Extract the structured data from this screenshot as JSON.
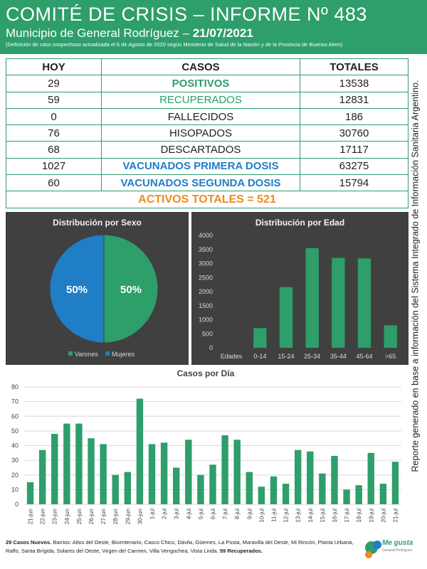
{
  "header": {
    "title": "COMITÉ DE CRISIS – INFORME Nº 483",
    "subtitle_prefix": "Municipio de General Rodríguez – ",
    "date": "21/07/2021",
    "note": "(Definición de caso sospechoso actualizada el 6 de Agosto de 2020 según Ministerio de Salud de la Nación y de la Provincia de Buenos Aires)"
  },
  "table": {
    "headers": [
      "HOY",
      "CASOS",
      "TOTALES"
    ],
    "rows": [
      {
        "hoy": "29",
        "label": "POSITIVOS",
        "total": "13538"
      },
      {
        "hoy": "59",
        "label": "RECUPERADOS",
        "total": "12831"
      },
      {
        "hoy": "0",
        "label": "FALLECIDOS",
        "total": "186"
      },
      {
        "hoy": "76",
        "label": "HISOPADOS",
        "total": "30760"
      },
      {
        "hoy": "68",
        "label": "DESCARTADOS",
        "total": "17117"
      },
      {
        "hoy": "1027",
        "label": "VACUNADOS PRIMERA DOSIS",
        "total": "63275"
      },
      {
        "hoy": "60",
        "label": "VACUNADOS SEGUNDA DOSIS",
        "total": "15794"
      }
    ],
    "activos": "ACTIVOS TOTALES = 521"
  },
  "side_note": "Reporte generado en base a información del Sistema Integrado de Información Sanitaria Argentino.",
  "colors": {
    "green": "#2e9e6b",
    "blue": "#1f7ec6",
    "orange": "#f08a1c",
    "panel": "#404040",
    "bar": "#2e9e6b"
  },
  "chart_data": [
    {
      "type": "pie",
      "title": "Distribución por Sexo",
      "labels": [
        "Varones",
        "Mujeres"
      ],
      "values": [
        50,
        50
      ],
      "data_labels": [
        "50%",
        "50%"
      ],
      "legend": "bottom"
    },
    {
      "type": "bar",
      "title": "Distribución por Edad",
      "xlabel": "Edades",
      "categories": [
        "0-14",
        "15-24",
        "25-34",
        "35-44",
        "45-64",
        ">65"
      ],
      "values": [
        700,
        2160,
        3550,
        3200,
        3180,
        800
      ],
      "ylim": [
        0,
        4000
      ],
      "yticks": [
        "0",
        "500",
        "1000",
        "1500",
        "2000",
        "2500",
        "3000",
        "3500",
        "4000"
      ]
    },
    {
      "type": "bar",
      "title": "Casos por Día",
      "categories": [
        "21-jun",
        "22-jun",
        "23-jun",
        "24-jun",
        "25-jun",
        "26-jun",
        "27-jun",
        "28-jun",
        "29-jun",
        "30-jun",
        "1-jul",
        "2-jul",
        "3-jul",
        "4-jul",
        "5-jul",
        "6-jul",
        "7-jul",
        "8-jul",
        "9-jul",
        "10-jul",
        "11-jul",
        "12-jul",
        "13-jul",
        "14-jul",
        "15-jul",
        "16-jul",
        "17-jul",
        "18-jul",
        "19-jul",
        "20-jul",
        "21-jul"
      ],
      "values": [
        15,
        37,
        48,
        55,
        55,
        45,
        41,
        20,
        22,
        72,
        41,
        42,
        25,
        44,
        20,
        27,
        47,
        44,
        22,
        12,
        19,
        14,
        37,
        36,
        21,
        33,
        10,
        13,
        35,
        14,
        29
      ],
      "ylim": [
        0,
        80
      ],
      "yticks": [
        "0",
        "10",
        "20",
        "30",
        "40",
        "50",
        "60",
        "70",
        "80"
      ],
      "grid": true
    }
  ],
  "footer": {
    "bold_start": "29 Casos Nuevos.",
    "text": " Barrios: Altos del Oeste, Bicentenario, Casco Chico, Dávila, Güemes, La Posta, Maravilla del Oeste, Mi Rincón, Planta Urbana, Raffo, Santa Brígida, Solares del Oeste, Virgen del Carmen, Villa Vengochea, Vista Linda. ",
    "bold_end": "59 Recuperados."
  },
  "logo": {
    "text": "Me gusta",
    "sub": "General Rodríguez"
  }
}
